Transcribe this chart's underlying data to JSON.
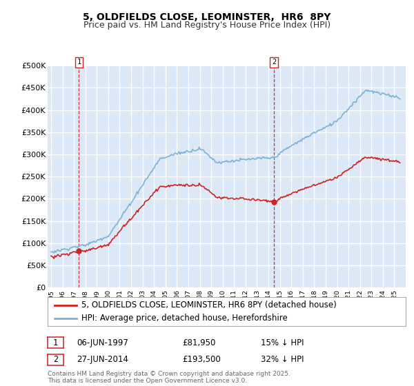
{
  "title": "5, OLDFIELDS CLOSE, LEOMINSTER,  HR6  8PY",
  "subtitle": "Price paid vs. HM Land Registry's House Price Index (HPI)",
  "ylim": [
    0,
    500000
  ],
  "yticks": [
    0,
    50000,
    100000,
    150000,
    200000,
    250000,
    300000,
    350000,
    400000,
    450000,
    500000
  ],
  "ytick_labels": [
    "£0",
    "£50K",
    "£100K",
    "£150K",
    "£200K",
    "£250K",
    "£300K",
    "£350K",
    "£400K",
    "£450K",
    "£500K"
  ],
  "hpi_color": "#7ab4d8",
  "price_color": "#cc2222",
  "vline_color": "#cc2222",
  "plot_bg_color": "#dce8f5",
  "grid_color": "#ffffff",
  "legend_label_price": "5, OLDFIELDS CLOSE, LEOMINSTER, HR6 8PY (detached house)",
  "legend_label_hpi": "HPI: Average price, detached house, Herefordshire",
  "t1_year": 1997.44,
  "t2_year": 2014.49,
  "price1": 81950,
  "price2": 193500,
  "transaction1": {
    "date": "06-JUN-1997",
    "price": "£81,950",
    "pct": "15% ↓ HPI",
    "label": "1"
  },
  "transaction2": {
    "date": "27-JUN-2014",
    "price": "£193,500",
    "pct": "32% ↓ HPI",
    "label": "2"
  },
  "copyright": "Contains HM Land Registry data © Crown copyright and database right 2025.\nThis data is licensed under the Open Government Licence v3.0.",
  "title_fontsize": 10,
  "subtitle_fontsize": 9,
  "tick_fontsize": 8,
  "legend_fontsize": 8.5
}
